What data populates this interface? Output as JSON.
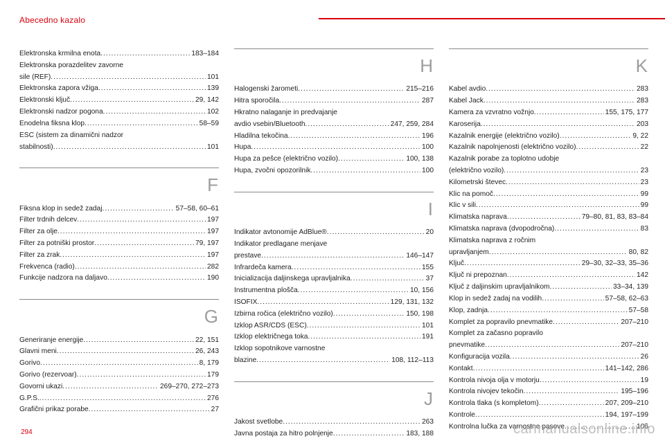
{
  "header": {
    "title": "Abecedno kazalo"
  },
  "page_number": "294",
  "watermark": "carmanualsonline.info",
  "rule_color": "#d9000d",
  "columns": [
    {
      "blocks": [
        {
          "letter": null,
          "entries": [
            {
              "label": "Elektronska krmilna enota",
              "pages": "183–184"
            },
            {
              "label": "Elektronska porazdelitev zavorne",
              "pages": "",
              "noleader": true
            },
            {
              "label": "sile (REF)",
              "pages": "101"
            },
            {
              "label": "Elektronska zapora vžiga",
              "pages": "139"
            },
            {
              "label": "Elektronski ključ",
              "pages": "29, 142"
            },
            {
              "label": "Elektronski nadzor pogona",
              "pages": "102"
            },
            {
              "label": "Enodelna fiksna klop",
              "pages": "58–59"
            },
            {
              "label": "ESC (sistem za dinamični nadzor",
              "pages": "",
              "noleader": true
            },
            {
              "label": "stabilnosti)",
              "pages": "101"
            }
          ]
        },
        {
          "letter": "F",
          "entries": [
            {
              "label": "Fiksna klop in sedež zadaj",
              "pages": "57–58, 60–61"
            },
            {
              "label": "Filter trdnih delcev",
              "pages": "197"
            },
            {
              "label": "Filter za olje",
              "pages": "197"
            },
            {
              "label": "Filter za potniški prostor",
              "pages": "79, 197"
            },
            {
              "label": "Filter za zrak",
              "pages": "197"
            },
            {
              "label": "Frekvenca (radio)",
              "pages": "282"
            },
            {
              "label": "Funkcije nadzora na daljavo",
              "pages": "190"
            }
          ]
        },
        {
          "letter": "G",
          "entries": [
            {
              "label": "Generiranje energije",
              "pages": "22, 151"
            },
            {
              "label": "Glavni meni",
              "pages": "26, 243"
            },
            {
              "label": "Gorivo",
              "pages": "8, 179"
            },
            {
              "label": "Gorivo (rezervoar)",
              "pages": "179"
            },
            {
              "label": "Govorni ukazi",
              "pages": "269–270, 272–273"
            },
            {
              "label": "G.P.S.",
              "pages": "276"
            },
            {
              "label": "Grafični prikaz porabe",
              "pages": "27"
            }
          ]
        }
      ]
    },
    {
      "blocks": [
        {
          "letter": "H",
          "entries": [
            {
              "label": "Halogenski žarometi",
              "pages": "215–216"
            },
            {
              "label": "Hitra sporočila",
              "pages": "287"
            },
            {
              "label": "Hkratno nalaganje in predvajanje",
              "pages": "",
              "noleader": true
            },
            {
              "label": "avdio vsebin/Bluetooth",
              "pages": "247, 259, 284"
            },
            {
              "label": "Hladilna tekočina",
              "pages": "196"
            },
            {
              "label": "Hupa",
              "pages": "100"
            },
            {
              "label": "Hupa za pešce (električno vozilo)",
              "pages": "100, 138"
            },
            {
              "label": "Hupa, zvočni opozorilnik",
              "pages": "100"
            }
          ]
        },
        {
          "letter": "I",
          "entries": [
            {
              "label": "Indikator avtonomije AdBlue®",
              "pages": "20"
            },
            {
              "label": "Indikator predlagane menjave",
              "pages": "",
              "noleader": true
            },
            {
              "label": "prestave",
              "pages": "146–147"
            },
            {
              "label": "Infrardeča kamera",
              "pages": "155"
            },
            {
              "label": "Inicializacija daljinskega upravljalnika",
              "pages": "37"
            },
            {
              "label": "Instrumentna plošča",
              "pages": "10, 156"
            },
            {
              "label": "ISOFIX",
              "pages": "129, 131, 132"
            },
            {
              "label": "Izbirna ročica (električno vozilo)",
              "pages": "150, 198"
            },
            {
              "label": "Izklop ASR/CDS (ESC)",
              "pages": "101"
            },
            {
              "label": "Izklop električnega toka",
              "pages": "191"
            },
            {
              "label": "Izklop sopotnikove varnostne",
              "pages": "",
              "noleader": true
            },
            {
              "label": "blazine",
              "pages": "108, 112–113"
            }
          ]
        },
        {
          "letter": "J",
          "entries": [
            {
              "label": "Jakost svetlobe",
              "pages": "263"
            },
            {
              "label": "Javna postaja za hitro polnjenje",
              "pages": "183, 188"
            }
          ]
        }
      ]
    },
    {
      "blocks": [
        {
          "letter": "K",
          "entries": [
            {
              "label": "Kabel avdio",
              "pages": "283"
            },
            {
              "label": "Kabel Jack",
              "pages": "283"
            },
            {
              "label": "Kamera za vzvratno vožnjo",
              "pages": "155, 175, 177"
            },
            {
              "label": "Karoserija",
              "pages": "203"
            },
            {
              "label": "Kazalnik energije (električno vozilo)",
              "pages": "9, 22"
            },
            {
              "label": "Kazalnik napolnjenosti (električno vozilo)",
              "pages": "22"
            },
            {
              "label": "Kazalnik porabe za toplotno udobje",
              "pages": "",
              "noleader": true
            },
            {
              "label": "(električno vozilo)",
              "pages": "23"
            },
            {
              "label": "Kilometrski števec",
              "pages": "23"
            },
            {
              "label": "Klic na pomoč",
              "pages": "99"
            },
            {
              "label": "Klic v sili",
              "pages": "99"
            },
            {
              "label": "Klimatska naprava",
              "pages": "79–80, 81, 83, 83–84"
            },
            {
              "label": "Klimatska naprava (dvopodročna)",
              "pages": "83"
            },
            {
              "label": "Klimatska naprava z ročnim",
              "pages": "",
              "noleader": true
            },
            {
              "label": "upravljanjem",
              "pages": "80, 82"
            },
            {
              "label": "Ključ",
              "pages": "29–30, 32–33, 35–36"
            },
            {
              "label": "Ključ ni prepoznan",
              "pages": "142"
            },
            {
              "label": "Ključ z daljinskim upravljalnikom",
              "pages": "33–34, 139"
            },
            {
              "label": "Klop in sedež zadaj na vodilih",
              "pages": "57–58, 62–63"
            },
            {
              "label": "Klop, zadnja",
              "pages": "57–58"
            },
            {
              "label": "Komplet za popravilo pnevmatike",
              "pages": "207–210"
            },
            {
              "label": "Komplet za začasno popravilo",
              "pages": "",
              "noleader": true
            },
            {
              "label": "pnevmatike",
              "pages": "207–210"
            },
            {
              "label": "Konfiguracija vozila",
              "pages": "26"
            },
            {
              "label": "Kontakt",
              "pages": "141–142, 286"
            },
            {
              "label": "Kontrola nivoja olja v motorju",
              "pages": "19"
            },
            {
              "label": "Kontrola nivojev tekočin",
              "pages": "195–196"
            },
            {
              "label": "Kontrola tlaka (s kompletom)",
              "pages": "207, 209–210"
            },
            {
              "label": "Kontrole",
              "pages": "194, 197–199"
            },
            {
              "label": "Kontrolna lučka za varnostne pasove",
              "pages": "106"
            }
          ]
        }
      ]
    }
  ]
}
